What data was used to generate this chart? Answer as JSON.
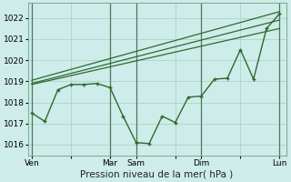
{
  "background_color": "#ceecea",
  "grid_color": "#b0d8c8",
  "line_color": "#2d6a2d",
  "vline_color": "#4a7a5a",
  "xlabel": "Pression niveau de la mer( hPa )",
  "xlabel_fontsize": 7.5,
  "ylim": [
    1015.5,
    1022.7
  ],
  "yticks": [
    1016,
    1017,
    1018,
    1019,
    1020,
    1021,
    1022
  ],
  "xtick_labels": [
    "Ven",
    "",
    "Mar",
    "Sam",
    "",
    "Dim",
    "",
    "Lun"
  ],
  "xtick_positions": [
    0,
    3,
    6,
    8,
    11,
    13,
    16,
    19
  ],
  "x_vlines": [
    0,
    6,
    8,
    13,
    19
  ],
  "xlim": [
    -0.3,
    19.5
  ],
  "series1_x": [
    0,
    1,
    2,
    3,
    4,
    5,
    6,
    7,
    8,
    9,
    10,
    11,
    12,
    13,
    14,
    15,
    16,
    17,
    18,
    19
  ],
  "series1_y": [
    1017.5,
    1017.1,
    1018.6,
    1018.85,
    1018.85,
    1018.9,
    1018.7,
    1017.35,
    1016.1,
    1016.05,
    1017.35,
    1017.05,
    1018.25,
    1018.3,
    1019.1,
    1019.15,
    1020.5,
    1019.1,
    1021.5,
    1022.2
  ],
  "series2_x": [
    0,
    19
  ],
  "series2_y": [
    1018.85,
    1021.5
  ],
  "series3_x": [
    0,
    19
  ],
  "series3_y": [
    1018.9,
    1021.9
  ],
  "series4_x": [
    0,
    19
  ],
  "series4_y": [
    1019.05,
    1022.3
  ]
}
